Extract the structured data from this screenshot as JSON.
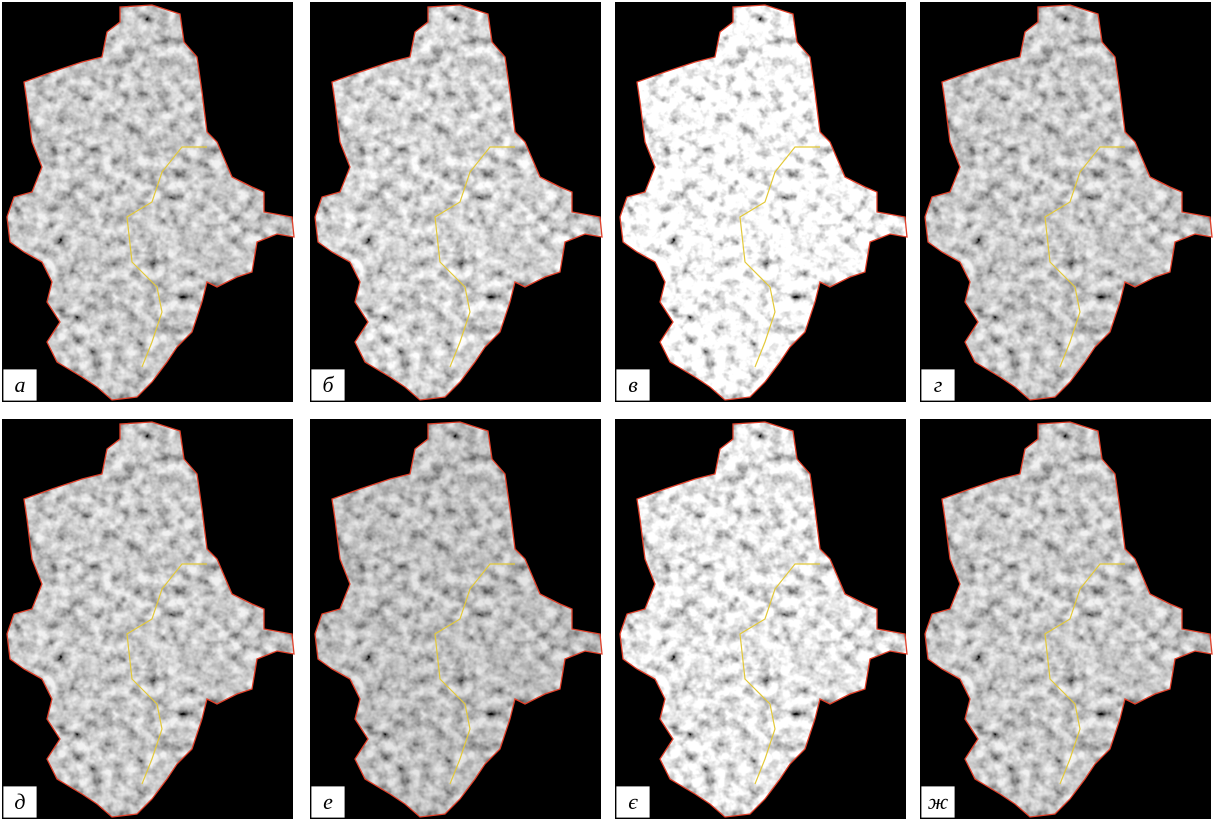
{
  "panels": [
    {
      "label": "а"
    },
    {
      "label": "б"
    },
    {
      "label": "в"
    },
    {
      "label": "г"
    },
    {
      "label": "д"
    },
    {
      "label": "е"
    },
    {
      "label": "є"
    },
    {
      "label": "ж"
    }
  ]
}
